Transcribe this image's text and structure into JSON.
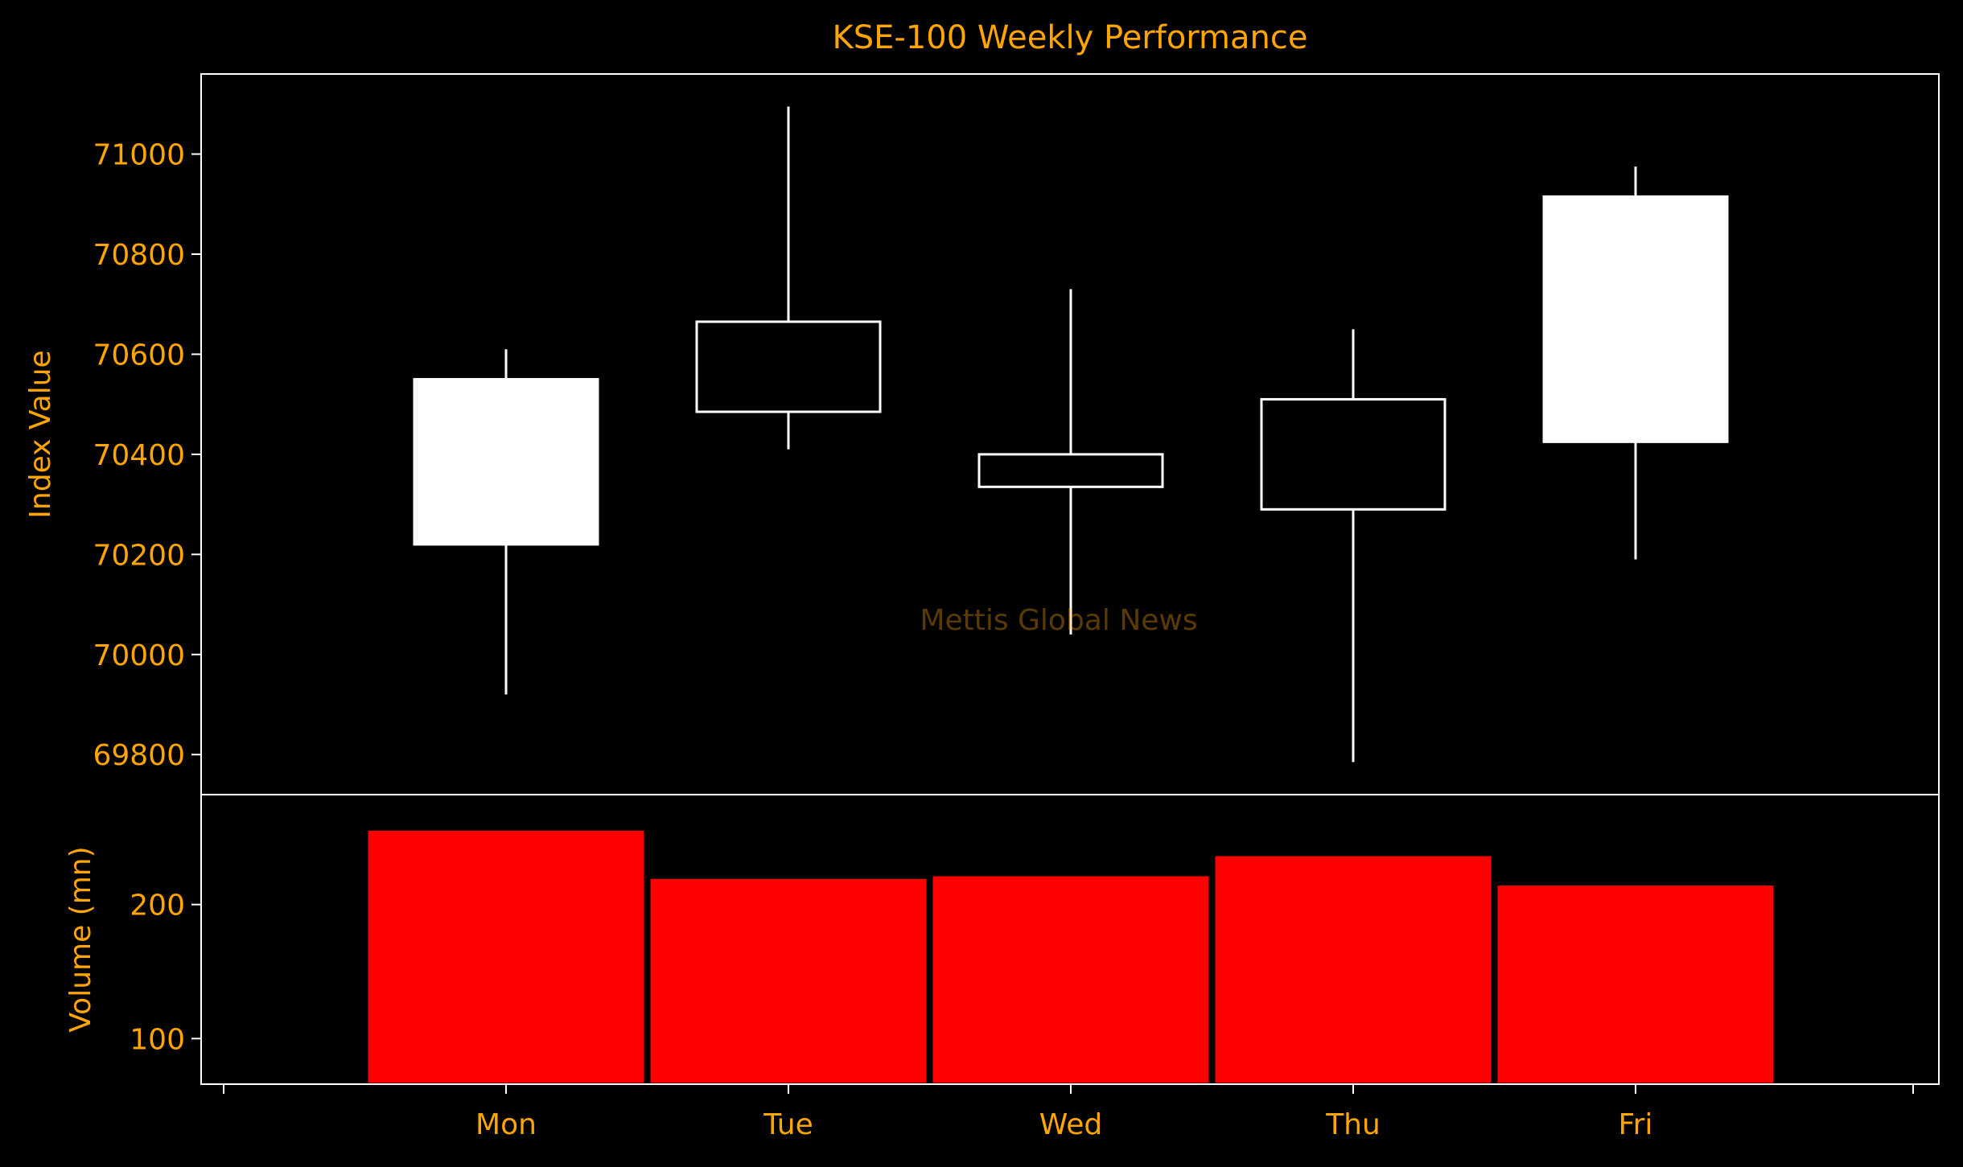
{
  "chart_data": {
    "type": "candlestick",
    "title": "KSE-100 Weekly Performance",
    "watermark": "Mettis Global News",
    "categories": [
      "Mon",
      "Tue",
      "Wed",
      "Thu",
      "Fri"
    ],
    "price": {
      "ylabel": "Index Value",
      "ylim": [
        69720,
        71160
      ],
      "ticks": [
        69800,
        70000,
        70200,
        70400,
        70600,
        70800,
        71000
      ],
      "ohlc": [
        {
          "day": "Mon",
          "open": 70220,
          "high": 70610,
          "low": 69920,
          "close": 70550
        },
        {
          "day": "Tue",
          "open": 70665,
          "high": 71095,
          "low": 70410,
          "close": 70485
        },
        {
          "day": "Wed",
          "open": 70400,
          "high": 70730,
          "low": 70040,
          "close": 70335
        },
        {
          "day": "Thu",
          "open": 70510,
          "high": 70650,
          "low": 69785,
          "close": 70290
        },
        {
          "day": "Fri",
          "open": 70425,
          "high": 70975,
          "low": 70190,
          "close": 70915
        }
      ]
    },
    "volume": {
      "ylabel": "Volume (mn)",
      "ylim": [
        66,
        282
      ],
      "ticks": [
        100,
        200
      ],
      "values": [
        256,
        220,
        222,
        237,
        215
      ]
    },
    "colors": {
      "background": "#000000",
      "text": "#FFA500",
      "axes": "#FFFFFF",
      "up_fill": "#FFFFFF",
      "down_fill": "#000000",
      "wick": "#FFFFFF",
      "volume_bar": "#FF0000",
      "watermark": "#FFA500"
    },
    "grid": false,
    "legend": "none"
  }
}
